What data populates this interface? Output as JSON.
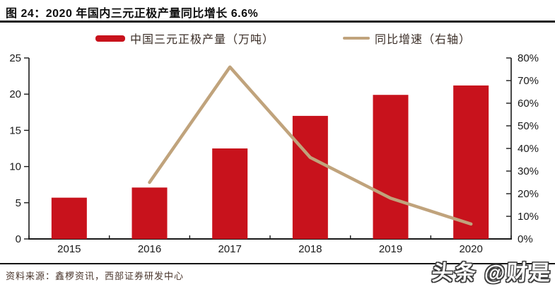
{
  "title": "图 24：2020 年国内三元正极产量同比增长 6.6%",
  "legend": [
    {
      "label": "中国三元正极产量（万吨）",
      "type": "bar",
      "color": "#C8121C"
    },
    {
      "label": "同比增速（右轴）",
      "type": "line",
      "color": "#C0A37C"
    }
  ],
  "source": "资料来源：鑫椤资讯，西部证券研发中心",
  "watermark": "头条 @财是",
  "chart_data": {
    "type": "bar",
    "categories": [
      "2015",
      "2016",
      "2017",
      "2018",
      "2019",
      "2020"
    ],
    "series": [
      {
        "name": "中国三元正极产量（万吨）",
        "type": "bar",
        "axis": "left",
        "color": "#C8121C",
        "values": [
          5.7,
          7.1,
          12.5,
          17.0,
          19.9,
          21.2
        ]
      },
      {
        "name": "同比增速（右轴）",
        "type": "line",
        "axis": "right",
        "color": "#C0A37C",
        "values": [
          null,
          25,
          76,
          36,
          18,
          6.6
        ]
      }
    ],
    "left_axis": {
      "min": 0,
      "max": 25,
      "step": 5,
      "tick_labels": [
        "0",
        "5",
        "10",
        "15",
        "20",
        "25"
      ]
    },
    "right_axis": {
      "min": 0,
      "max": 80,
      "step": 10,
      "tick_labels": [
        "0%",
        "10%",
        "20%",
        "30%",
        "40%",
        "50%",
        "60%",
        "70%",
        "80%"
      ]
    },
    "grid": false,
    "legend_position": "top",
    "title": "图 24：2020 年国内三元正极产量同比增长 6.6%"
  }
}
